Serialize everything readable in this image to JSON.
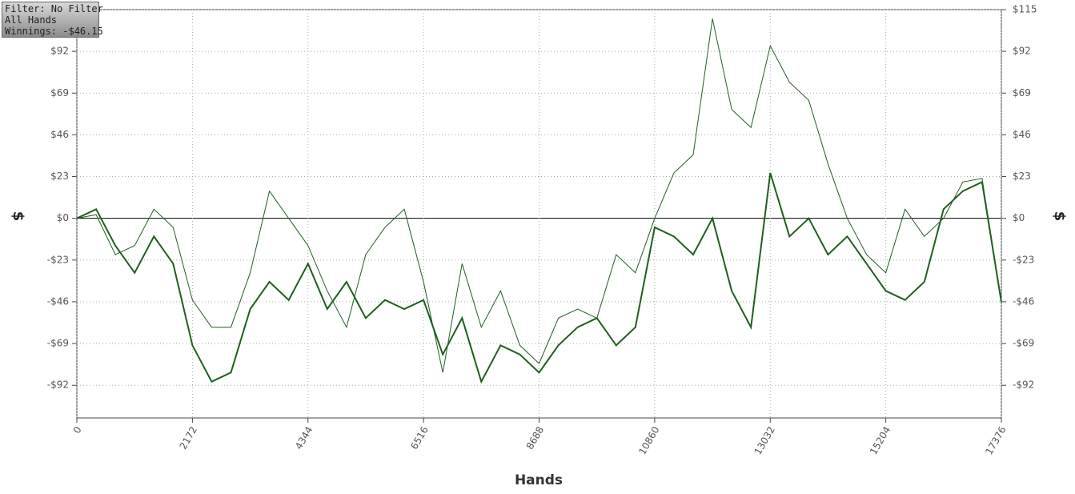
{
  "chart_data": {
    "type": "line",
    "info": [
      "Filter: No Filter",
      "All Hands",
      "Winnings: -$46.15"
    ],
    "xlabel": "Hands",
    "ylabel": "$",
    "y2label": "$",
    "x": [
      0,
      362,
      724,
      1086,
      1448,
      1810,
      2172,
      2534,
      2896,
      3258,
      3620,
      3982,
      4344,
      4706,
      5068,
      5430,
      5792,
      6154,
      6516,
      6878,
      7240,
      7602,
      7964,
      8326,
      8688,
      9050,
      9412,
      9774,
      10136,
      10498,
      10860,
      11222,
      11584,
      11946,
      12308,
      12670,
      13032,
      13394,
      13756,
      14118,
      14480,
      14842,
      15204,
      15566,
      15928,
      16290,
      16652,
      17014,
      17376
    ],
    "series": [
      {
        "color": "#1f5f1f",
        "values": [
          0,
          2,
          -20,
          -15,
          5,
          -5,
          -45,
          -60,
          -60,
          -30,
          15,
          0,
          -15,
          -40,
          -60,
          -20,
          -5,
          5,
          -35,
          -85,
          -25,
          -60,
          -40,
          -70,
          -80,
          -55,
          -50,
          -55,
          -20,
          -30,
          0,
          25,
          35,
          110,
          60,
          50,
          95,
          75,
          65,
          30,
          0,
          -20,
          -30,
          5,
          -10,
          0,
          20,
          22,
          -46.15
        ]
      },
      {
        "color": "#1f5f1f",
        "values": [
          0,
          5,
          -15,
          -30,
          -10,
          -25,
          -70,
          -90,
          -85,
          -50,
          -35,
          -45,
          -25,
          -50,
          -35,
          -55,
          -45,
          -50,
          -45,
          -75,
          -55,
          -90,
          -70,
          -75,
          -85,
          -70,
          -60,
          -55,
          -70,
          -60,
          -5,
          -10,
          -20,
          0,
          -40,
          -60,
          25,
          -10,
          0,
          -20,
          -10,
          -25,
          -40,
          -45,
          -35,
          5,
          15,
          20,
          -46.15
        ]
      }
    ],
    "xlim": [
      0,
      17376
    ],
    "xticks": [
      0,
      2172,
      4344,
      6516,
      8688,
      10860,
      13032,
      15204,
      17376
    ],
    "ylim": [
      -110,
      115
    ],
    "yticks": [
      {
        "value": -92,
        "label": "-$92"
      },
      {
        "value": -69,
        "label": "-$69"
      },
      {
        "value": -46,
        "label": "-$46"
      },
      {
        "value": -23,
        "label": "-$23"
      },
      {
        "value": 0,
        "label": "$0"
      },
      {
        "value": 23,
        "label": "$23"
      },
      {
        "value": 46,
        "label": "$46"
      },
      {
        "value": 69,
        "label": "$69"
      },
      {
        "value": 92,
        "label": "$92"
      },
      {
        "value": 115,
        "label": "$115"
      }
    ],
    "grid": true
  }
}
